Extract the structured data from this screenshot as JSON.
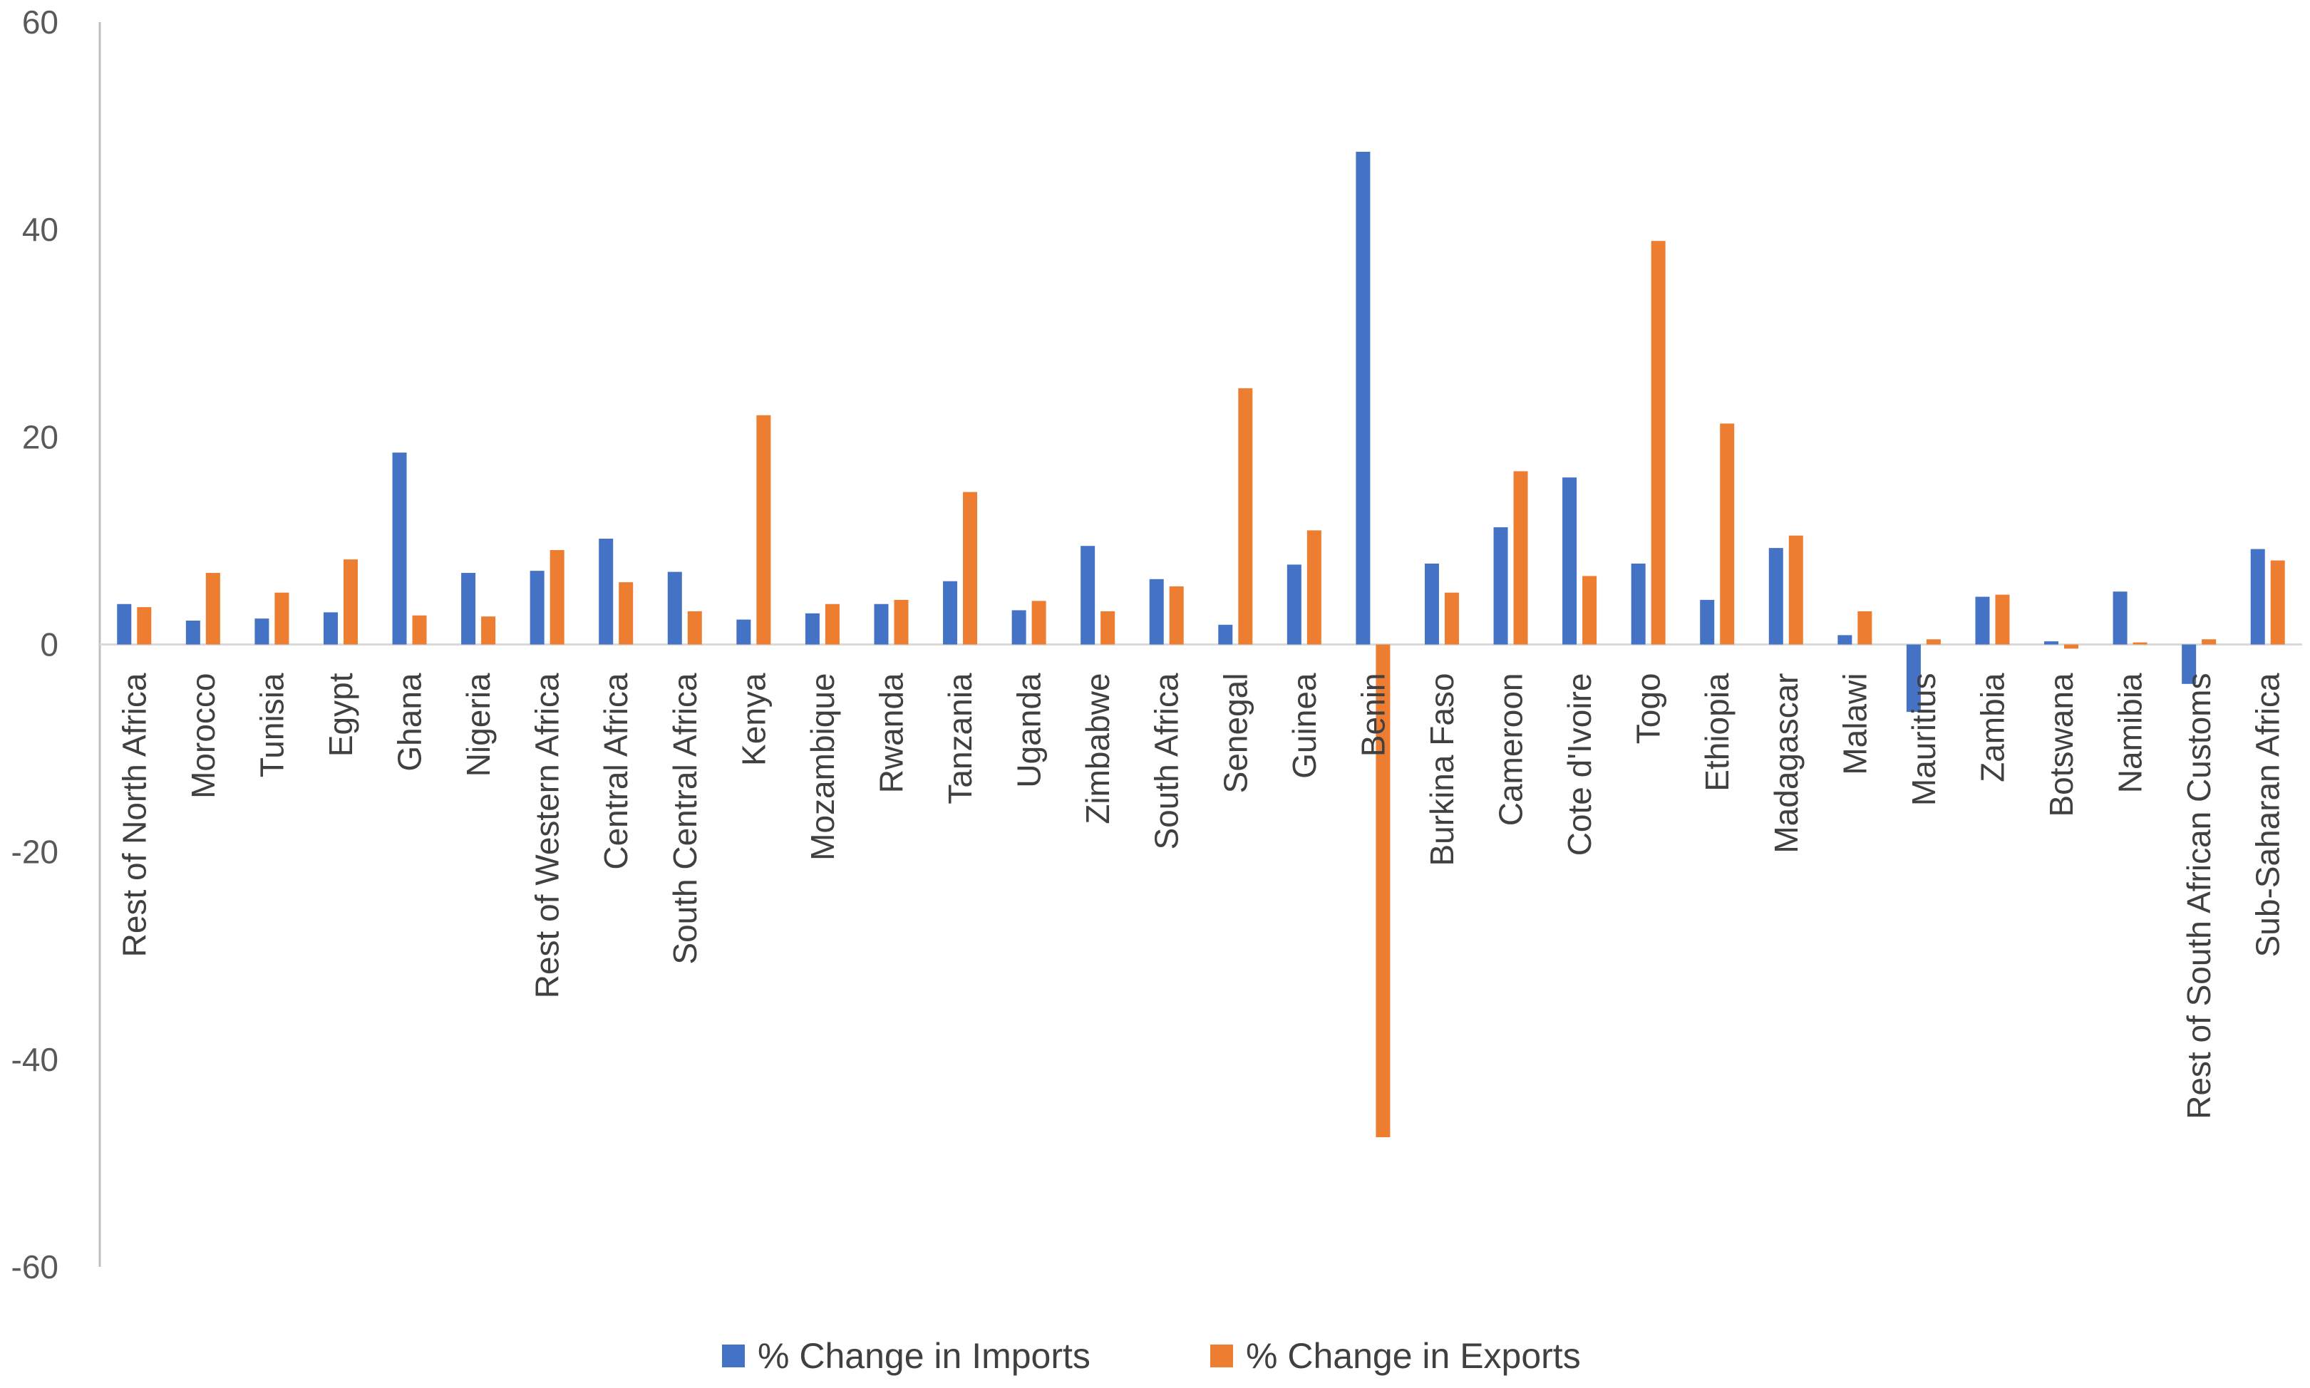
{
  "chart_data": {
    "type": "bar",
    "title": "",
    "xlabel": "",
    "ylabel": "",
    "ylim": [
      -60,
      60
    ],
    "yticks": [
      60,
      40,
      20,
      0,
      -20,
      -40,
      -60
    ],
    "grid": false,
    "legend_position": "bottom",
    "categories": [
      "Rest of North Africa",
      "Morocco",
      "Tunisia",
      "Egypt",
      "Ghana",
      "Nigeria",
      "Rest of Western Africa",
      "Central Africa",
      "South Central Africa",
      "Kenya",
      "Mozambique",
      "Rwanda",
      "Tanzania",
      "Uganda",
      "Zimbabwe",
      "South Africa",
      "Senegal",
      "Guinea",
      "Benin",
      "Burkina Faso",
      "Cameroon",
      "Cote d'Ivoire",
      "Togo",
      "Ethiopia",
      "Madagascar",
      "Malawi",
      "Mauritius",
      "Zambia",
      "Botswana",
      "Namibia",
      "Rest of South African Customs",
      "Sub-Saharan Africa"
    ],
    "series": [
      {
        "name": "% Change in Imports",
        "color": "#4472C4",
        "values": [
          3.9,
          2.3,
          2.5,
          3.1,
          18.5,
          6.9,
          7.1,
          10.2,
          7.0,
          2.4,
          3.0,
          3.9,
          6.1,
          3.3,
          9.5,
          6.3,
          1.9,
          7.7,
          47.5,
          7.8,
          11.3,
          16.1,
          7.8,
          4.3,
          9.3,
          0.9,
          -6.5,
          4.6,
          0.3,
          5.1,
          -3.8,
          9.2
        ]
      },
      {
        "name": "% Change in Exports",
        "color": "#ED7D31",
        "values": [
          3.6,
          6.9,
          5.0,
          8.2,
          2.8,
          2.7,
          9.1,
          6.0,
          3.2,
          22.1,
          3.9,
          4.3,
          14.7,
          4.2,
          3.2,
          5.6,
          24.7,
          11.0,
          -47.5,
          5.0,
          16.7,
          6.6,
          38.9,
          21.3,
          10.5,
          3.2,
          0.5,
          4.8,
          -0.4,
          0.2,
          0.5,
          8.1
        ]
      }
    ]
  }
}
